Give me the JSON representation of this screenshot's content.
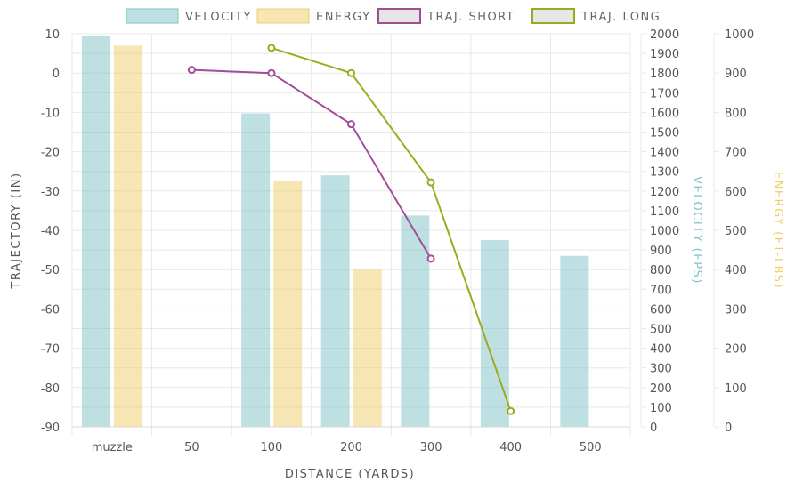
{
  "chart_data": {
    "type": "bar",
    "categories": [
      "muzzle",
      "50",
      "100",
      "200",
      "300",
      "400",
      "500"
    ],
    "xlabel": "DISTANCE (YARDS)",
    "axes": {
      "trajectory": {
        "label": "TRAJECTORY (IN)",
        "range": [
          -90,
          10
        ],
        "ticks": [
          10,
          0,
          -10,
          -20,
          -30,
          -40,
          -50,
          -60,
          -70,
          -80,
          -90
        ]
      },
      "velocity": {
        "label": "VELOCITY (FPS)",
        "range": [
          0,
          2000
        ],
        "ticks": [
          2000,
          1900,
          1800,
          1700,
          1600,
          1500,
          1400,
          1300,
          1200,
          1100,
          1000,
          900,
          800,
          700,
          600,
          500,
          400,
          300,
          200,
          100,
          0
        ]
      },
      "energy": {
        "label": "ENERGY (FT-LBS)",
        "range": [
          0,
          1000
        ],
        "ticks": [
          1000,
          900,
          800,
          700,
          600,
          500,
          400,
          300,
          200,
          100,
          0
        ]
      }
    },
    "series": [
      {
        "name": "VELOCITY",
        "type": "bar",
        "axis": "velocity",
        "color": "#7fc1c5",
        "values": [
          1990,
          null,
          1595,
          1280,
          1075,
          950,
          870
        ]
      },
      {
        "name": "ENERGY",
        "type": "bar",
        "axis": "energy",
        "color": "#f0cd6a",
        "values": [
          970,
          null,
          625,
          400,
          null,
          null,
          null
        ]
      },
      {
        "name": "TRAJ. SHORT",
        "type": "line",
        "axis": "trajectory",
        "color": "#a24c9a",
        "values": [
          null,
          0.8,
          0,
          -13,
          -47.2,
          null,
          null
        ]
      },
      {
        "name": "TRAJ. LONG",
        "type": "line",
        "axis": "trajectory",
        "color": "#9aab1f",
        "values": [
          null,
          null,
          6.4,
          0,
          -27.8,
          -86,
          null
        ]
      }
    ],
    "legend_position": "top-center",
    "grid": true
  }
}
